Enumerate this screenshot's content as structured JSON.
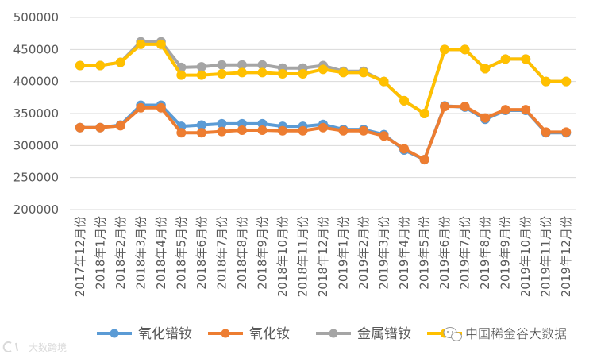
{
  "chart_data": {
    "type": "line",
    "title": "",
    "xlabel": "",
    "ylabel": "",
    "ylim": [
      200000,
      500000
    ],
    "yticks": [
      "500000",
      "450000",
      "400000",
      "350000",
      "300000",
      "250000",
      "200000"
    ],
    "ytick_values": [
      500000,
      450000,
      400000,
      350000,
      300000,
      250000,
      200000
    ],
    "grid": true,
    "legend_position": "bottom",
    "categories": [
      "2017年12月份",
      "2018年1月份",
      "2018年2月份",
      "2018年3月份",
      "2018年4月份",
      "2018年5月份",
      "2018年6月份",
      "2018年7月份",
      "2018年8月份",
      "2018年9月份",
      "2018年10月份",
      "2018年11月份",
      "2018年12月份",
      "2019年1月份",
      "2019年2月份",
      "2019年3月份",
      "2019年4月份",
      "2019年5月份",
      "2019年6月份",
      "2019年7月份",
      "2019年8月份",
      "2019年9月份",
      "2019年10月份",
      "2019年11月份",
      "2019年12月份"
    ],
    "series": [
      {
        "name": "氧化镨钕",
        "color": "#5b9bd5",
        "values": [
          328000,
          328000,
          332000,
          363000,
          363000,
          330000,
          332000,
          334000,
          334000,
          334000,
          330000,
          330000,
          333000,
          325000,
          325000,
          317000,
          293000,
          278000,
          362000,
          360000,
          341000,
          355000,
          355000,
          320000,
          320000
        ]
      },
      {
        "name": "氧化钕",
        "color": "#ed7d31",
        "values": [
          328000,
          328000,
          331000,
          359000,
          359000,
          320000,
          320000,
          322000,
          324000,
          324000,
          323000,
          323000,
          328000,
          323000,
          323000,
          315000,
          295000,
          278000,
          361000,
          361000,
          343000,
          356000,
          356000,
          321000,
          321000
        ]
      },
      {
        "name": "金属镨钕",
        "color": "#a5a5a5",
        "values": [
          425000,
          425000,
          430000,
          462000,
          462000,
          422000,
          423000,
          426000,
          426000,
          426000,
          421000,
          421000,
          425000,
          416000,
          416000,
          400000,
          370000,
          350000,
          450000,
          450000,
          420000,
          435000,
          435000,
          400000,
          400000
        ]
      },
      {
        "name": "",
        "color": "#ffc000",
        "values": [
          425000,
          425000,
          430000,
          458000,
          458000,
          410000,
          410000,
          412000,
          414000,
          414000,
          412000,
          412000,
          419000,
          414000,
          414000,
          400000,
          370000,
          350000,
          450000,
          450000,
          420000,
          435000,
          435000,
          400000,
          400000
        ]
      }
    ]
  },
  "watermarks": {
    "right": "中国稀金谷大数据",
    "left": "大数跨境"
  }
}
